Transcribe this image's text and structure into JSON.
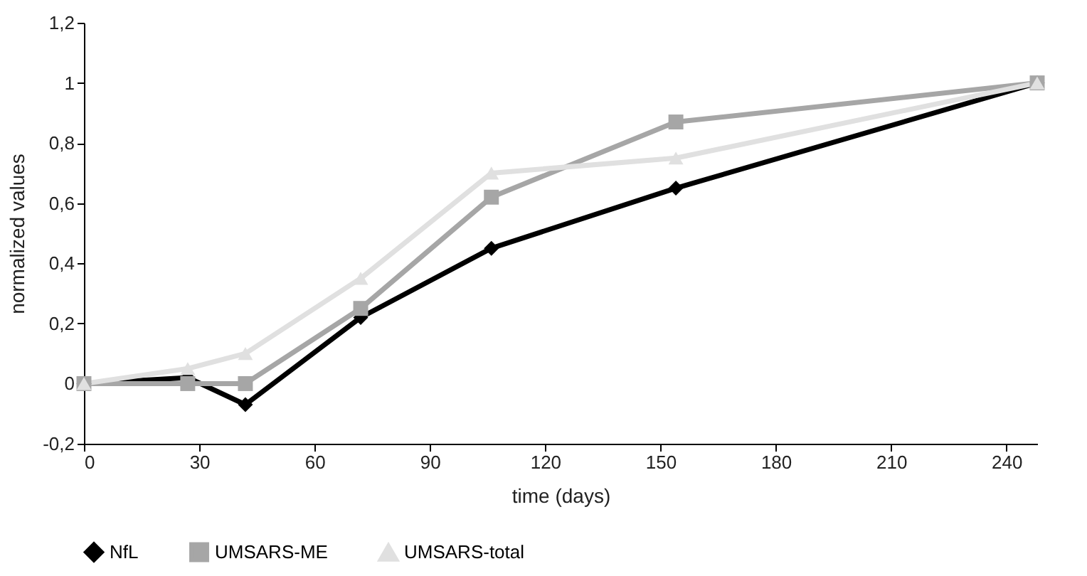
{
  "chart_data": {
    "type": "line",
    "xlabel": "time (days)",
    "ylabel": "normalized values",
    "xlim": [
      0,
      248
    ],
    "xticks": [
      0,
      30,
      60,
      90,
      120,
      150,
      180,
      210,
      240
    ],
    "ylim": [
      -0.2,
      1.2
    ],
    "yticks": [
      {
        "value": -0.2,
        "label": "-0,2"
      },
      0,
      {
        "value": 0.2,
        "label": "0,2"
      },
      {
        "value": 0.4,
        "label": "0,4"
      },
      {
        "value": 0.6,
        "label": "0,6"
      },
      {
        "value": 0.8,
        "label": "0,8"
      },
      1,
      {
        "value": 1.2,
        "label": "1,2"
      }
    ],
    "x": [
      0,
      27,
      42,
      72,
      106,
      154,
      248
    ],
    "grid": false,
    "legend": "bottom",
    "line_style": "solid",
    "series": [
      {
        "name": "NfL",
        "color": "#000000",
        "marker": "diamond",
        "values": [
          0,
          0.02,
          -0.07,
          0.22,
          0.45,
          0.65,
          1
        ]
      },
      {
        "name": "UMSARS-ME",
        "color": "#a6a6a6",
        "marker": "square",
        "values": [
          0,
          0,
          0,
          0.25,
          0.62,
          0.87,
          1
        ]
      },
      {
        "name": "UMSARS-total",
        "color": "#e0e0e0",
        "marker": "triangle",
        "values": [
          0,
          0.05,
          0.1,
          0.35,
          0.7,
          0.75,
          1
        ]
      }
    ]
  }
}
